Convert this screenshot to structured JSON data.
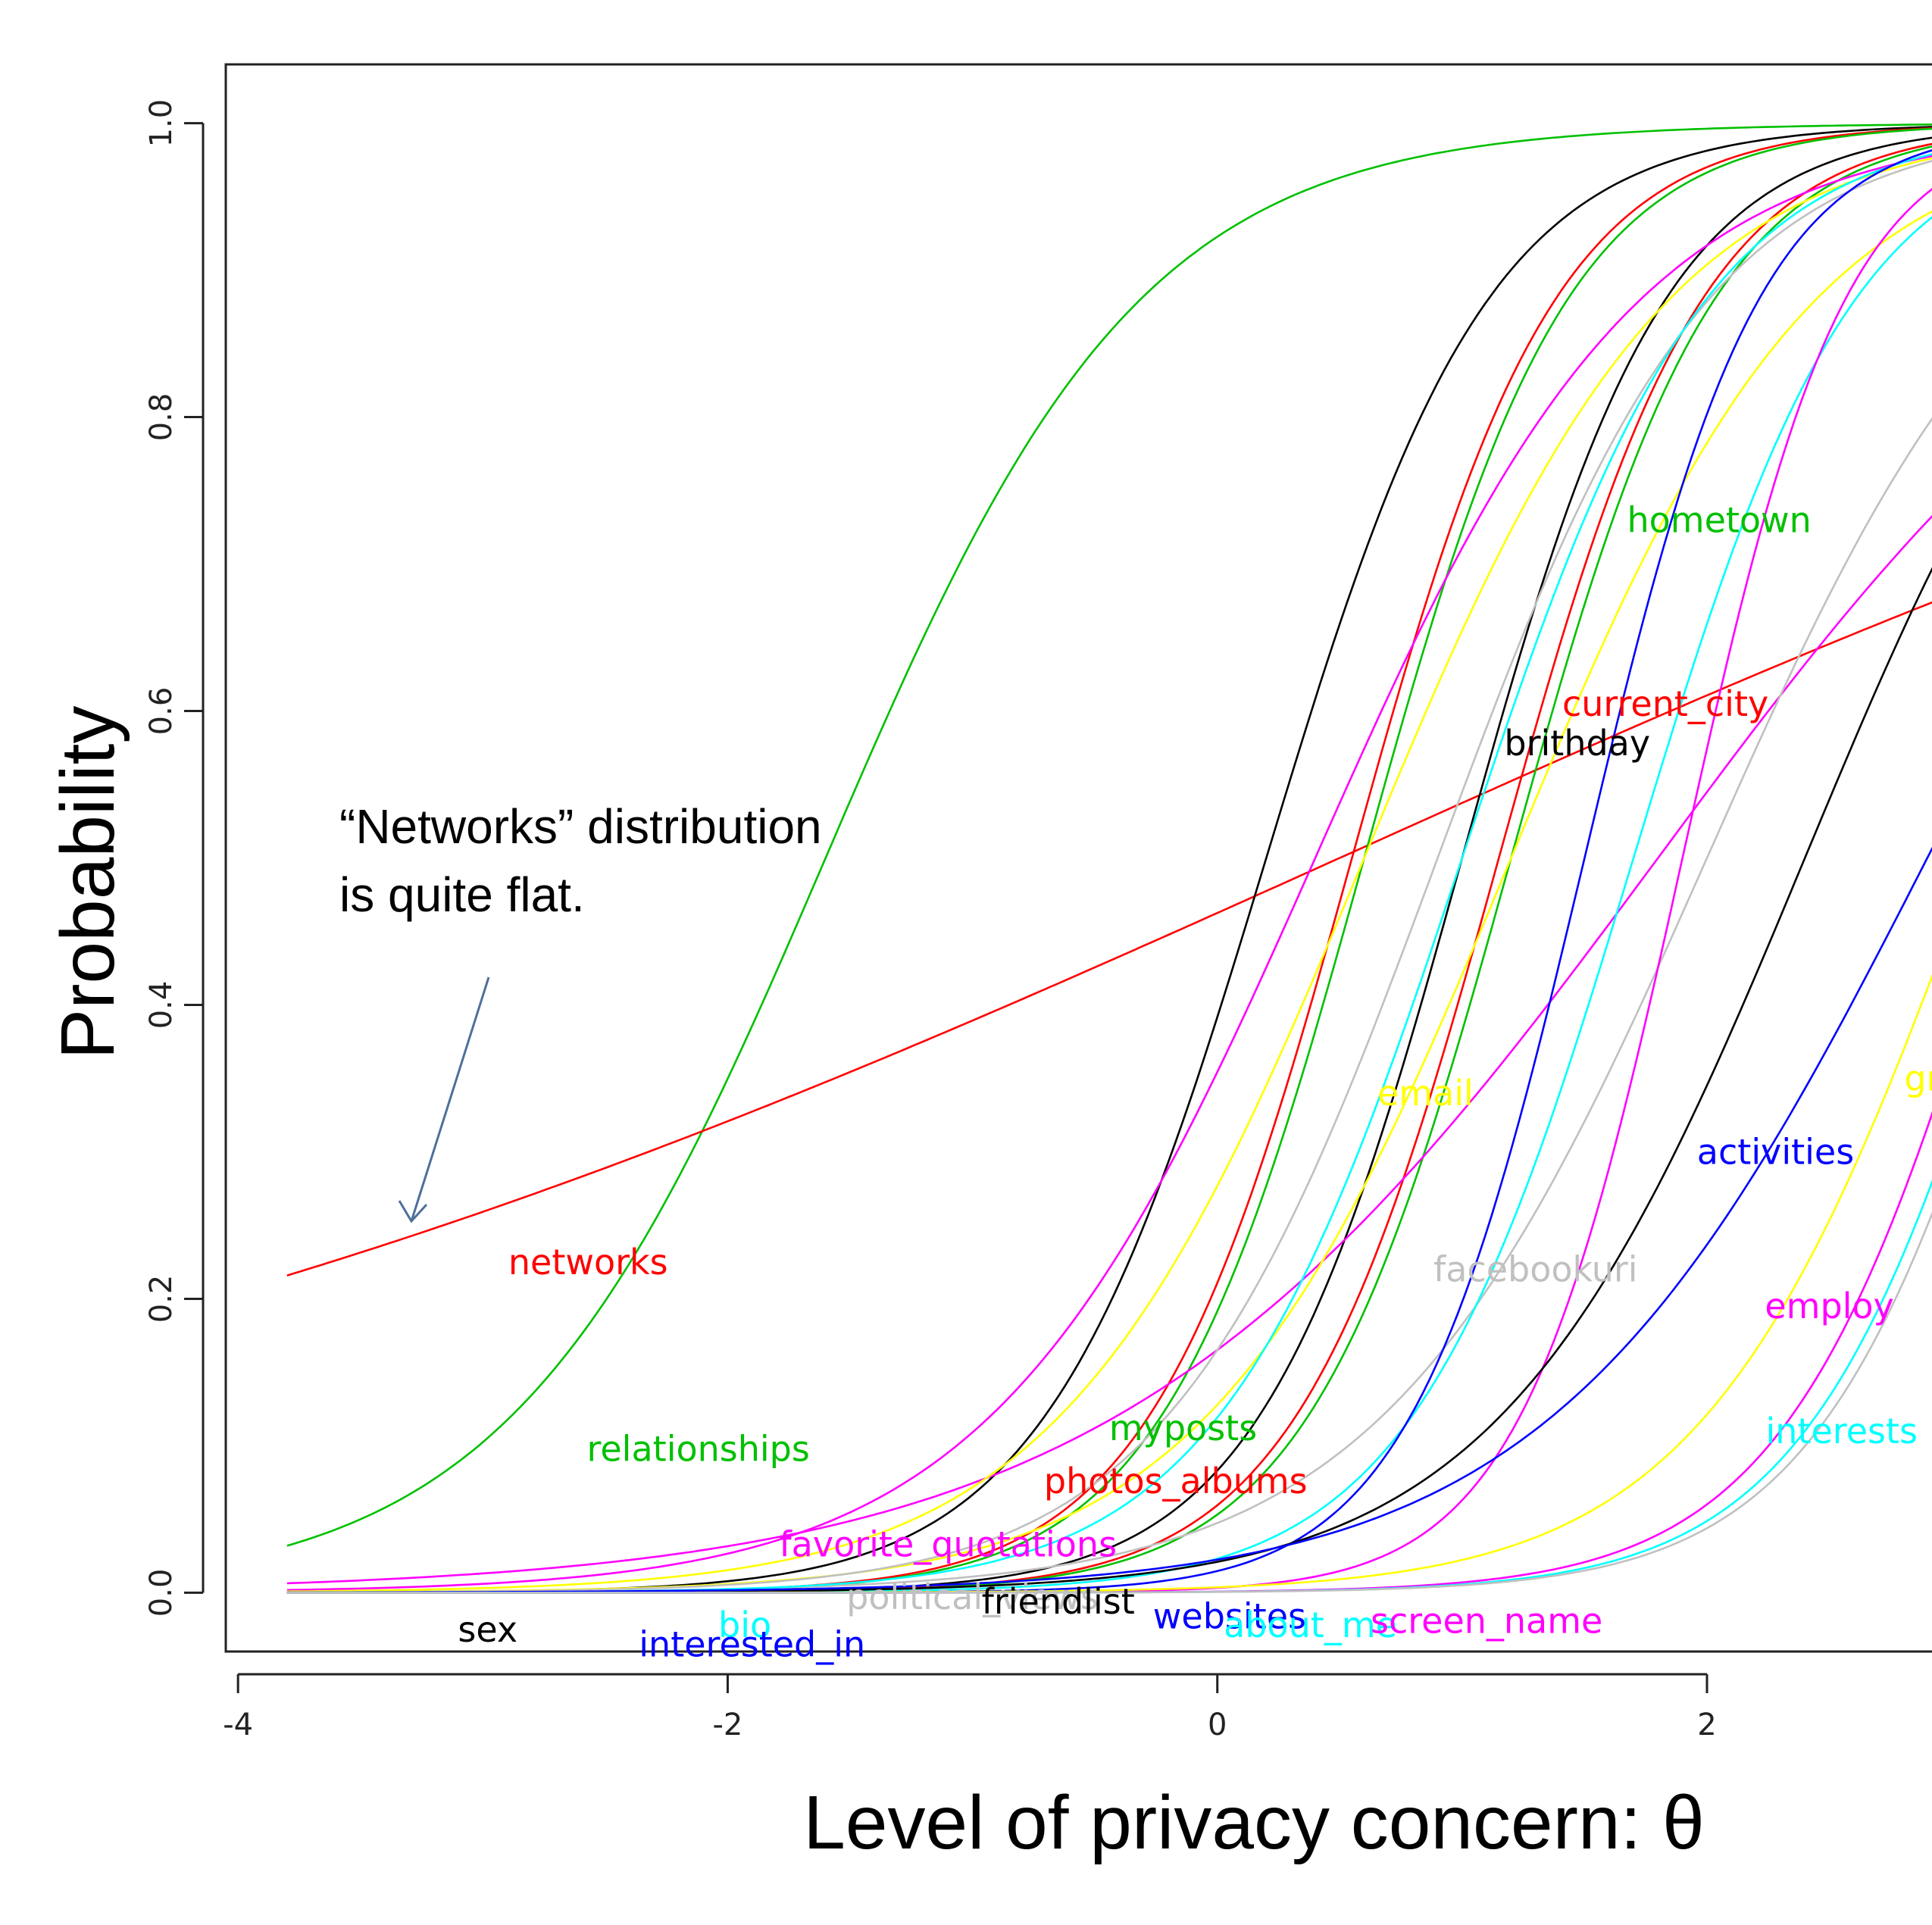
{
  "chart_data": {
    "type": "line",
    "title": "",
    "xlabel": "Level of privacy concern: θ",
    "ylabel": "Probability",
    "xlim": [
      -4.05,
      2.95
    ],
    "ylim": [
      -0.04,
      1.04
    ],
    "x_ticks": [
      "-4",
      "-2",
      "0",
      "2"
    ],
    "y_ticks": [
      "0.0",
      "0.2",
      "0.4",
      "0.6",
      "0.8",
      "1.0"
    ],
    "x_tick_values": [
      -4,
      -2,
      0,
      2
    ],
    "y_tick_values": [
      0.0,
      0.2,
      0.4,
      0.6,
      0.8,
      1.0
    ],
    "x_range": [
      -3.8,
      2.95
    ],
    "grid": false,
    "legend": "none",
    "annotation": {
      "lines": [
        "“Networks” distribution",
        "is quite flat."
      ],
      "arrow_color": "#4f6f9a"
    },
    "series": [
      {
        "color": "#00c000",
        "a": 1.55,
        "b": -1.6
      },
      {
        "color": "#ff0000",
        "a": 0.3,
        "b": 0.5
      },
      {
        "color": "#000000",
        "a": 2.2,
        "b": 0.2
      },
      {
        "color": "#ff0000",
        "a": 2.4,
        "b": 0.55
      },
      {
        "color": "#00c000",
        "a": 2.4,
        "b": 0.6
      },
      {
        "color": "#000000",
        "a": 2.4,
        "b": 1.0
      },
      {
        "color": "#ff0000",
        "a": 2.4,
        "b": 1.15
      },
      {
        "color": "#00c000",
        "a": 2.4,
        "b": 1.2
      },
      {
        "color": "#ff00ff",
        "a": 1.5,
        "b": 0.4
      },
      {
        "color": "#ff00ff",
        "a": 0.9,
        "b": 1.8
      },
      {
        "color": "#ffff00",
        "a": 1.6,
        "b": 0.6
      },
      {
        "color": "#ffff00",
        "a": 1.6,
        "b": 1.2
      },
      {
        "color": "#c0c0c0",
        "a": 1.8,
        "b": 0.9
      },
      {
        "color": "#c0c0c0",
        "a": 1.5,
        "b": 2.0
      },
      {
        "color": "#00ffff",
        "a": 2.0,
        "b": 1.0
      },
      {
        "color": "#00ffff",
        "a": 2.2,
        "b": 1.7
      },
      {
        "color": "#0000ff",
        "a": 2.8,
        "b": 1.5
      },
      {
        "color": "#ff00ff",
        "a": 3.0,
        "b": 1.9
      },
      {
        "color": "#000000",
        "a": 1.6,
        "b": 2.4
      },
      {
        "color": "#0000ff",
        "a": 1.3,
        "b": 2.9
      },
      {
        "color": "#ffff00",
        "a": 1.8,
        "b": 3.1
      },
      {
        "color": "#ff00ff",
        "a": 2.2,
        "b": 3.25
      },
      {
        "color": "#00ffff",
        "a": 2.2,
        "b": 3.35
      },
      {
        "color": "#c0c0c0",
        "a": 2.2,
        "b": 3.4
      }
    ],
    "labels": [
      {
        "text": "hometown",
        "x": 2.05,
        "y": 0.73,
        "color": "#00c000"
      },
      {
        "text": "current_city",
        "x": 1.83,
        "y": 0.605,
        "color": "#ff0000"
      },
      {
        "text": "brithday",
        "x": 1.47,
        "y": 0.578,
        "color": "#000000"
      },
      {
        "text": "email",
        "x": 0.85,
        "y": 0.34,
        "color": "#ffff00"
      },
      {
        "text": "activities",
        "x": 2.28,
        "y": 0.3,
        "color": "#0000ff"
      },
      {
        "text": "facebookuri",
        "x": 1.3,
        "y": 0.22,
        "color": "#c0c0c0"
      },
      {
        "text": "gr",
        "x": 2.88,
        "y": 0.35,
        "color": "#ffff00"
      },
      {
        "text": "employ",
        "x": 2.5,
        "y": 0.195,
        "color": "#ff00ff"
      },
      {
        "text": "interests",
        "x": 2.55,
        "y": 0.11,
        "color": "#00ffff"
      },
      {
        "text": "networks",
        "x": -2.57,
        "y": 0.225,
        "color": "#ff0000"
      },
      {
        "text": "relationships",
        "x": -2.12,
        "y": 0.098,
        "color": "#00c000"
      },
      {
        "text": "myposts",
        "x": -0.14,
        "y": 0.112,
        "color": "#00c000"
      },
      {
        "text": "photos_albums",
        "x": -0.17,
        "y": 0.076,
        "color": "#ff0000"
      },
      {
        "text": "favorite_quotations",
        "x": -1.1,
        "y": 0.033,
        "color": "#ff00ff"
      },
      {
        "text": "political_views",
        "x": -1.0,
        "y": -0.003,
        "color": "#c0c0c0"
      },
      {
        "text": "friendlist",
        "x": -0.65,
        "y": -0.006,
        "color": "#000000"
      },
      {
        "text": "websites",
        "x": 0.05,
        "y": -0.016,
        "color": "#0000ff"
      },
      {
        "text": "about_me",
        "x": 0.38,
        "y": -0.022,
        "color": "#00ffff"
      },
      {
        "text": "screen_name",
        "x": 1.1,
        "y": -0.019,
        "color": "#ff00ff"
      },
      {
        "text": "sex",
        "x": -2.98,
        "y": -0.025,
        "color": "#000000"
      },
      {
        "text": "bio",
        "x": -1.93,
        "y": -0.022,
        "color": "#00ffff"
      },
      {
        "text": "interested_in",
        "x": -1.9,
        "y": -0.035,
        "color": "#0000ff"
      }
    ]
  }
}
